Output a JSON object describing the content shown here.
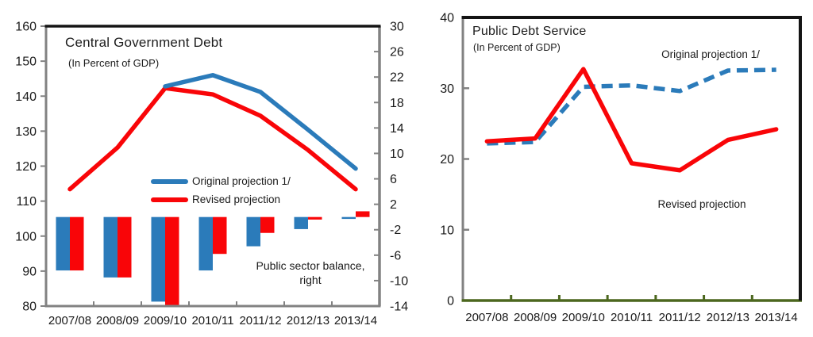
{
  "figure": {
    "background": "#ffffff",
    "colors": {
      "blue": "#2B7BBA",
      "red": "#F90508",
      "axis_gray": "#828282",
      "axis_black": "#141414",
      "axis_green": "#4C671E",
      "text": "#1a1a1a"
    }
  },
  "chart_data": [
    {
      "id": "central-government-debt",
      "type": "combo-line-bar",
      "title": "Central Government Debt",
      "subtitle": "(In Percent of GDP)",
      "categories": [
        "2007/08",
        "2008/09",
        "2009/10",
        "2010/11",
        "2011/12",
        "2012/13",
        "2013/14"
      ],
      "left_axis": {
        "min": 80,
        "max": 160,
        "tick_step": 10,
        "ticks": [
          160,
          150,
          140,
          130,
          120,
          110,
          100,
          90,
          80
        ]
      },
      "right_axis": {
        "min": -14,
        "max": 30,
        "tick_step": 4,
        "ticks": [
          30,
          26,
          22,
          18,
          14,
          10,
          6,
          2,
          -2,
          -6,
          -10,
          -14
        ]
      },
      "grid": false,
      "legend_position": "inside-center",
      "series": [
        {
          "name": "Original projection 1/",
          "type": "line",
          "axis": "left",
          "style": "solid",
          "color": "#2B7BBA",
          "values": [
            null,
            null,
            142.8,
            146.0,
            141.2,
            130.4,
            119.3
          ]
        },
        {
          "name": "Revised projection",
          "type": "line",
          "axis": "left",
          "style": "solid",
          "color": "#F90508",
          "values": [
            113.4,
            125.3,
            142.3,
            140.5,
            134.4,
            124.6,
            113.4
          ]
        },
        {
          "name": "Public sector balance (original)",
          "type": "bar",
          "axis": "right",
          "color": "#2B7BBA",
          "values": [
            -8.4,
            -9.5,
            -13.3,
            -8.4,
            -4.6,
            -1.9,
            -0.3
          ]
        },
        {
          "name": "Public sector balance (revised)",
          "type": "bar",
          "axis": "right",
          "color": "#F90508",
          "values": [
            -8.4,
            -9.5,
            -13.9,
            -5.8,
            -2.5,
            -0.4,
            0.9
          ]
        }
      ],
      "legend": [
        {
          "label": "Original projection 1/",
          "color": "#2B7BBA"
        },
        {
          "label": "Revised projection",
          "color": "#F90508"
        }
      ],
      "annotation": {
        "line1": "Public sector balance,",
        "line2": "right"
      }
    },
    {
      "id": "public-debt-service",
      "type": "line",
      "title": "Public Debt Service",
      "subtitle": "(In Percent of GDP)",
      "categories": [
        "2007/08",
        "2008/09",
        "2009/10",
        "2010/11",
        "2011/12",
        "2012/13",
        "2013/14"
      ],
      "y_axis": {
        "min": 0,
        "max": 40,
        "tick_step": 10,
        "ticks": [
          40,
          30,
          20,
          10,
          0
        ]
      },
      "grid": false,
      "series": [
        {
          "name": "Original projection 1/",
          "type": "line",
          "style": "dashed",
          "color": "#2B7BBA",
          "values": [
            22.2,
            22.4,
            30.2,
            30.4,
            29.6,
            32.5,
            32.6
          ]
        },
        {
          "name": "Revised projection",
          "type": "line",
          "style": "solid",
          "color": "#F90508",
          "values": [
            22.5,
            22.9,
            32.7,
            19.4,
            18.4,
            22.7,
            24.2
          ]
        }
      ],
      "annotations": [
        {
          "text": "Original projection 1/"
        },
        {
          "text": "Revised projection"
        }
      ]
    }
  ]
}
